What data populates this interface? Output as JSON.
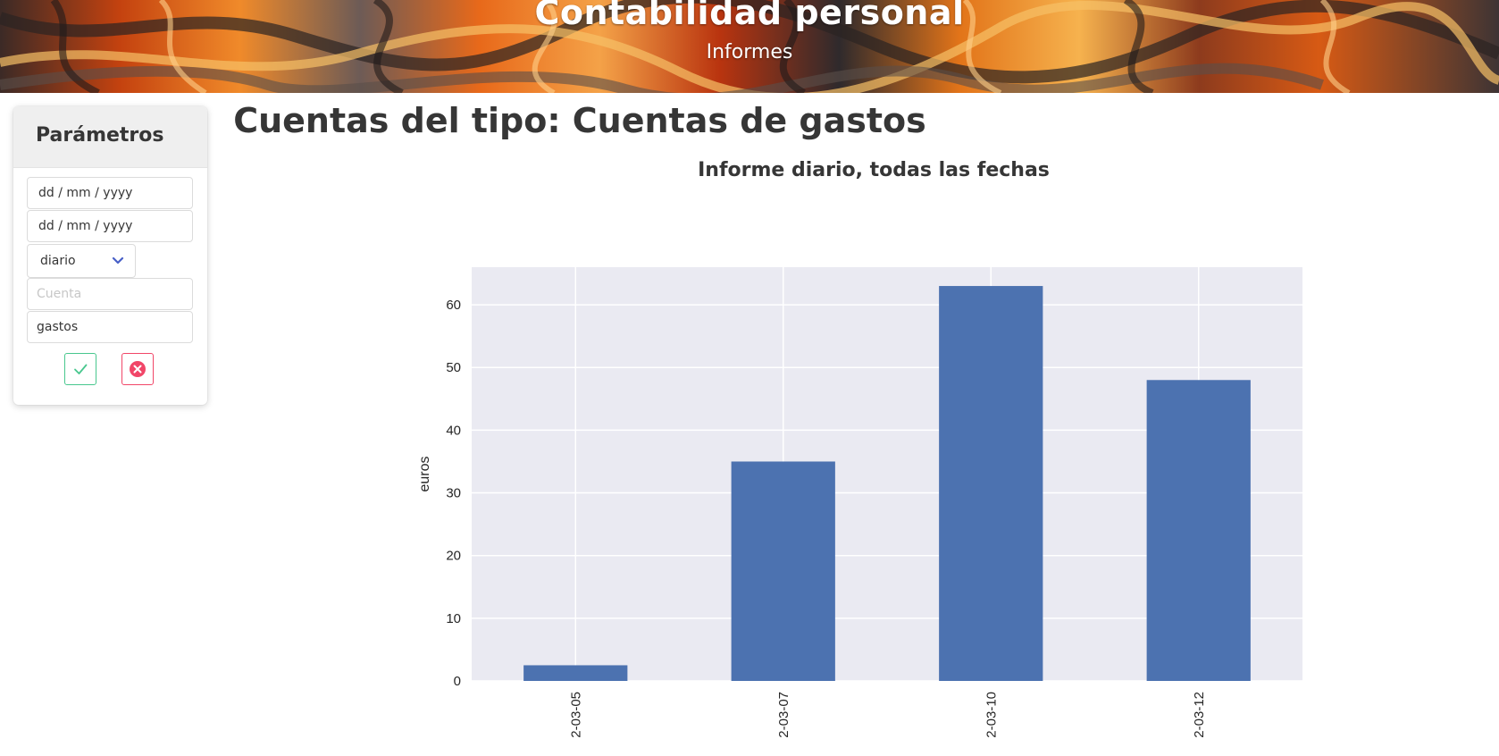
{
  "header": {
    "title": "Contabilidad personal",
    "subtitle": "Informes"
  },
  "parameters": {
    "title": "Parámetros",
    "date_from": "dd / mm / yyyy",
    "date_to": "dd / mm / yyyy",
    "period_select": "diario",
    "account_placeholder": "Cuenta",
    "account_type_value": "gastos",
    "confirm_icon": "check-icon",
    "cancel_icon": "close-circle-icon",
    "colors": {
      "confirm": "#48c78e",
      "cancel": "#f14668"
    }
  },
  "report": {
    "title": "Cuentas del tipo: Cuentas de gastos",
    "subtitle": "Informe diario, todas las fechas"
  },
  "chart_data": {
    "type": "bar",
    "categories": [
      "2-03-05",
      "2-03-07",
      "2-03-10",
      "2-03-12"
    ],
    "values": [
      2.5,
      35,
      63,
      48
    ],
    "ylabel": "euros",
    "xlabel": "",
    "ylim": [
      0,
      66
    ],
    "yticks": [
      0,
      10,
      20,
      30,
      40,
      50,
      60
    ],
    "grid": true,
    "bar_color": "#4c72b0",
    "background_color": "#eaeaf2"
  }
}
